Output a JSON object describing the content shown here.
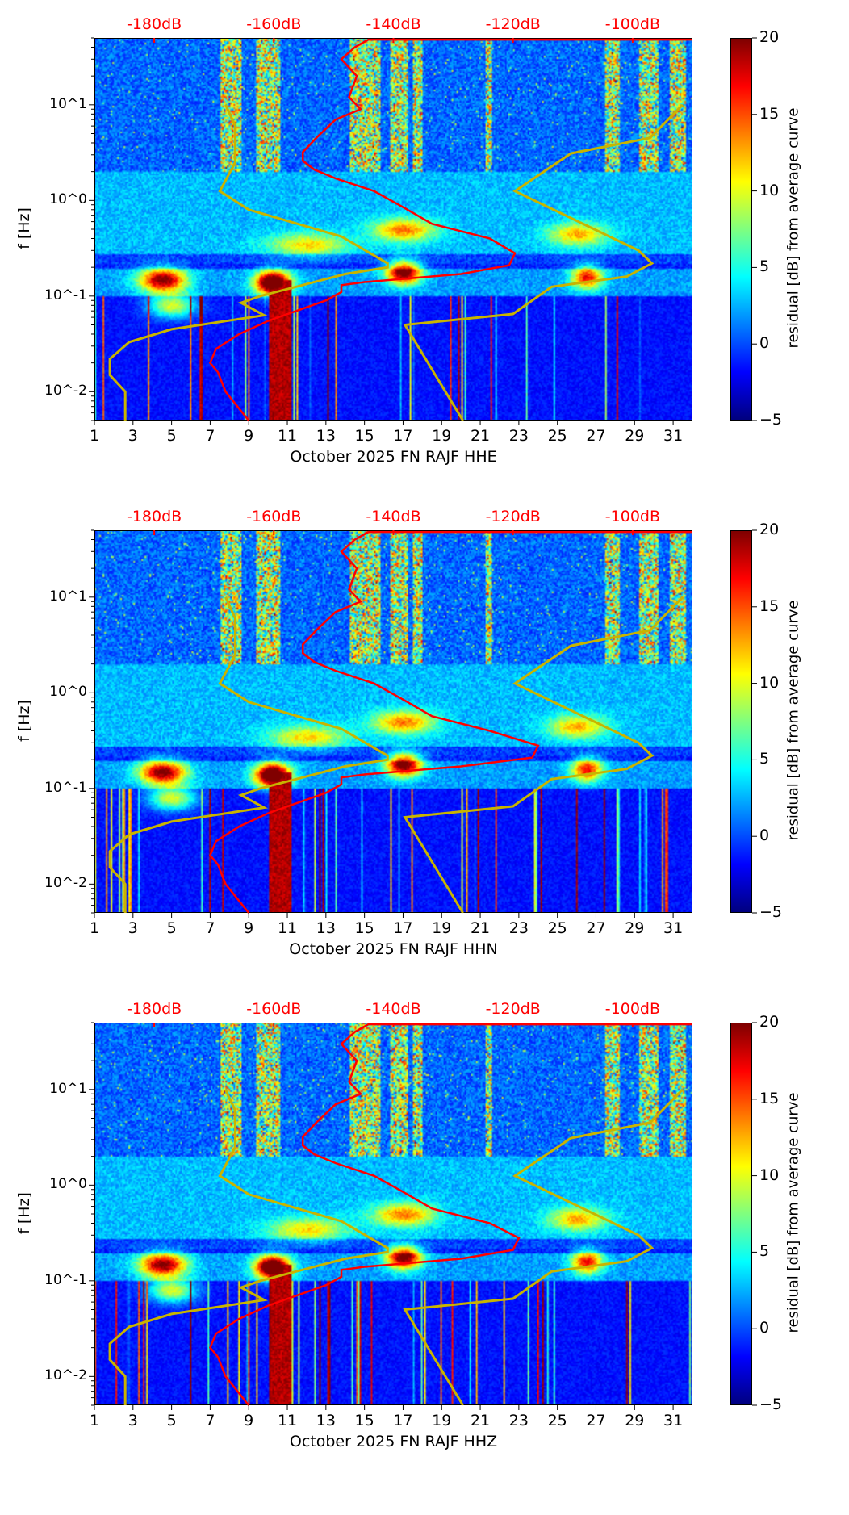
{
  "colors": {
    "nlnm_nhnm": "#c8b400",
    "psd_curve": "#ff0000",
    "db_labels": "#ff0000"
  },
  "chart_data": [
    {
      "type": "heatmap",
      "title": "",
      "xlabel": "October 2025 FN RAJF  HHE",
      "ylabel": "f [Hz]",
      "colorbar_label": "residual [dB] from average curve",
      "x_ticks": [
        "1",
        "3",
        "5",
        "7",
        "9",
        "11",
        "13",
        "15",
        "17",
        "19",
        "21",
        "23",
        "25",
        "27",
        "29",
        "31"
      ],
      "xlim": [
        1,
        32
      ],
      "y_scale": "log",
      "ylim": [
        0.005,
        50
      ],
      "y_ticks": [
        "10^-2",
        "10^-1",
        "10^0",
        "10^1"
      ],
      "clim": [
        -5,
        20
      ],
      "colorbar_ticks": [
        "−5",
        "0",
        "5",
        "10",
        "15",
        "20"
      ],
      "top_axis_ticks": [
        "-180dB",
        "-160dB",
        "-140dB",
        "-120dB",
        "-100dB"
      ],
      "top_axis_db": [
        -180,
        -160,
        -140,
        -120,
        -100
      ],
      "curves_x_units": "day-axis",
      "red_curve_peak_x": 22.8,
      "red_curve_variant": 0
    },
    {
      "type": "heatmap",
      "title": "",
      "xlabel": "October 2025 FN RAJF  HHN",
      "ylabel": "f [Hz]",
      "colorbar_label": "residual [dB] from average curve",
      "x_ticks": [
        "1",
        "3",
        "5",
        "7",
        "9",
        "11",
        "13",
        "15",
        "17",
        "19",
        "21",
        "23",
        "25",
        "27",
        "29",
        "31"
      ],
      "xlim": [
        1,
        32
      ],
      "y_scale": "log",
      "ylim": [
        0.005,
        50
      ],
      "y_ticks": [
        "10^-2",
        "10^-1",
        "10^0",
        "10^1"
      ],
      "clim": [
        -5,
        20
      ],
      "colorbar_ticks": [
        "−5",
        "0",
        "5",
        "10",
        "15",
        "20"
      ],
      "top_axis_ticks": [
        "-180dB",
        "-160dB",
        "-140dB",
        "-120dB",
        "-100dB"
      ],
      "top_axis_db": [
        -180,
        -160,
        -140,
        -120,
        -100
      ],
      "curves_x_units": "day-axis",
      "red_curve_peak_x": 24.0,
      "red_curve_variant": 1
    },
    {
      "type": "heatmap",
      "title": "",
      "xlabel": "October 2025 FN RAJF  HHZ",
      "ylabel": "f [Hz]",
      "colorbar_label": "residual [dB] from average curve",
      "x_ticks": [
        "1",
        "3",
        "5",
        "7",
        "9",
        "11",
        "13",
        "15",
        "17",
        "19",
        "21",
        "23",
        "25",
        "27",
        "29",
        "31"
      ],
      "xlim": [
        1,
        32
      ],
      "y_scale": "log",
      "ylim": [
        0.005,
        50
      ],
      "y_ticks": [
        "10^-2",
        "10^-1",
        "10^0",
        "10^1"
      ],
      "clim": [
        -5,
        20
      ],
      "colorbar_ticks": [
        "−5",
        "0",
        "5",
        "10",
        "15",
        "20"
      ],
      "top_axis_ticks": [
        "-180dB",
        "-160dB",
        "-140dB",
        "-120dB",
        "-100dB"
      ],
      "top_axis_db": [
        -180,
        -160,
        -140,
        -120,
        -100
      ],
      "curves_x_units": "day-axis",
      "red_curve_peak_x": 23.0,
      "red_curve_variant": 2
    }
  ],
  "curves": {
    "nlnm": [
      [
        7.8,
        10
      ],
      [
        8.3,
        6
      ],
      [
        8.3,
        2.5
      ],
      [
        7.5,
        1.25
      ],
      [
        9.0,
        0.8
      ],
      [
        13.8,
        0.42
      ],
      [
        16.2,
        0.22
      ],
      [
        16.2,
        0.2
      ],
      [
        14,
        0.17
      ],
      [
        9.6,
        0.1
      ],
      [
        8.6,
        0.085
      ],
      [
        9.8,
        0.063
      ],
      [
        5,
        0.045
      ],
      [
        2.8,
        0.033
      ],
      [
        1.8,
        0.022
      ],
      [
        1.8,
        0.015
      ],
      [
        2.6,
        0.01
      ],
      [
        2.6,
        0.005
      ]
    ],
    "nhnm": [
      [
        31.5,
        10
      ],
      [
        29.8,
        4.5
      ],
      [
        25.7,
        3.1
      ],
      [
        22.8,
        1.25
      ],
      [
        29.2,
        0.3
      ],
      [
        29.9,
        0.22
      ],
      [
        28.6,
        0.16
      ],
      [
        24.7,
        0.125
      ],
      [
        22.7,
        0.065
      ],
      [
        17.1,
        0.05
      ],
      [
        20.1,
        0.005
      ]
    ],
    "red": [
      [
        32,
        48
      ],
      [
        15.2,
        48
      ],
      [
        14.5,
        40
      ],
      [
        13.8,
        30
      ],
      [
        14.6,
        20
      ],
      [
        14.2,
        12
      ],
      [
        14.8,
        9
      ],
      [
        13.5,
        7
      ],
      [
        12.5,
        4.5
      ],
      [
        11.8,
        3.2
      ],
      [
        11.8,
        2.6
      ],
      [
        12.4,
        2.1
      ],
      [
        13.5,
        1.7
      ],
      [
        15.5,
        1.25
      ],
      [
        17,
        0.85
      ],
      [
        18.5,
        0.57
      ],
      [
        21.5,
        0.4
      ],
      [
        22.8,
        0.28
      ],
      [
        22.5,
        0.21
      ],
      [
        20,
        0.17
      ],
      [
        15,
        0.14
      ],
      [
        13.8,
        0.13
      ],
      [
        13.8,
        0.11
      ],
      [
        13,
        0.09
      ],
      [
        10,
        0.055
      ],
      [
        8.5,
        0.04
      ],
      [
        7.3,
        0.028
      ],
      [
        7.0,
        0.02
      ],
      [
        7.4,
        0.016
      ],
      [
        7.8,
        0.01
      ],
      [
        9,
        0.005
      ]
    ]
  }
}
